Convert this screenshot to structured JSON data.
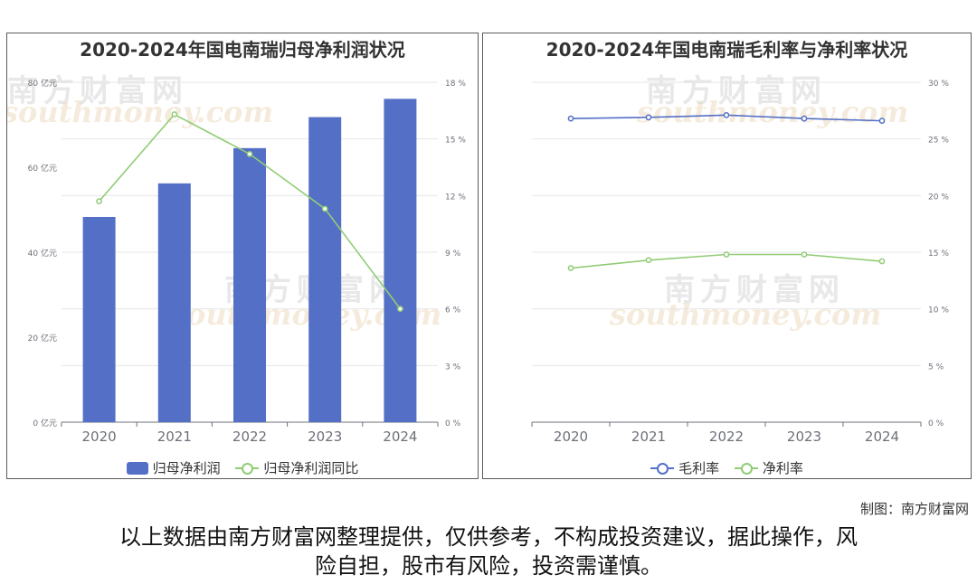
{
  "watermark": {
    "cn": "南方财富网",
    "en": "southmoney.com"
  },
  "left_chart": {
    "title": "2020-2024年国电南瑞归母净利润状况",
    "legend": {
      "bar": "归母净利润",
      "line": "归母净利润同比"
    },
    "colors": {
      "bar": "#5470c6",
      "line": "#91cc75"
    }
  },
  "right_chart": {
    "title": "2020-2024年国电南瑞毛利率与净利率状况",
    "legend": {
      "s1": "毛利率",
      "s2": "净利率"
    },
    "colors": {
      "s1": "#5470c6",
      "s2": "#91cc75"
    }
  },
  "chart_data": [
    {
      "type": "bar",
      "title": "2020-2024年国电南瑞归母净利润状况",
      "categories": [
        "2020",
        "2021",
        "2022",
        "2023",
        "2024"
      ],
      "series": [
        {
          "name": "归母净利润",
          "type": "bar",
          "axis": "left",
          "values": [
            48.3,
            56.2,
            64.5,
            71.8,
            76.1
          ]
        },
        {
          "name": "归母净利润同比",
          "type": "line",
          "axis": "right",
          "values": [
            11.7,
            16.3,
            14.2,
            11.3,
            6.0
          ]
        }
      ],
      "y_left": {
        "min": 0,
        "max": 80,
        "ticks": [
          0,
          20,
          40,
          60,
          80
        ],
        "labels": [
          "0 亿元",
          "20 亿元",
          "40 亿元",
          "60 亿元",
          "80 亿元"
        ]
      },
      "y_right": {
        "min": 0,
        "max": 18,
        "ticks": [
          0,
          3,
          6,
          9,
          12,
          15,
          18
        ],
        "labels": [
          "0 %",
          "3 %",
          "6 %",
          "9 %",
          "12 %",
          "15 %",
          "18 %"
        ]
      },
      "grid": true,
      "legend_position": "bottom"
    },
    {
      "type": "line",
      "title": "2020-2024年国电南瑞毛利率与净利率状况",
      "categories": [
        "2020",
        "2021",
        "2022",
        "2023",
        "2024"
      ],
      "series": [
        {
          "name": "毛利率",
          "values": [
            26.8,
            26.9,
            27.1,
            26.8,
            26.6
          ]
        },
        {
          "name": "净利率",
          "values": [
            13.6,
            14.3,
            14.8,
            14.8,
            14.2
          ]
        }
      ],
      "y_right": {
        "min": 0,
        "max": 30,
        "ticks": [
          0,
          5,
          10,
          15,
          20,
          25,
          30
        ],
        "labels": [
          "0 %",
          "5 %",
          "10 %",
          "15 %",
          "20 %",
          "25 %",
          "30 %"
        ]
      },
      "grid": true,
      "legend_position": "bottom"
    }
  ],
  "credit": "制图：南方财富网",
  "disclaimer": {
    "line1": "以上数据由南方财富网整理提供，仅供参考，不构成投资建议，据此操作，风",
    "line2": "险自担，股市有风险，投资需谨慎。"
  }
}
